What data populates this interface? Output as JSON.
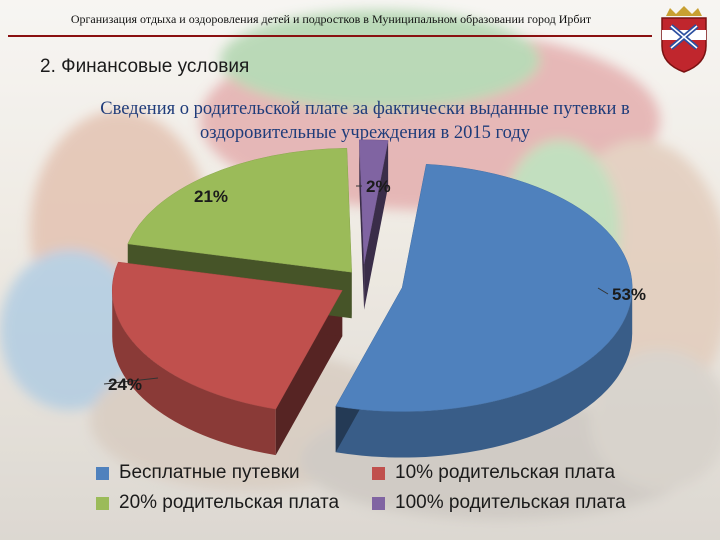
{
  "header": {
    "org_text": "Организация отдыха и оздоровления детей и подростков в Муниципальном образовании город Ирбит",
    "accent_color": "#8a1010"
  },
  "slide": {
    "section_title": "2. Финансовые условия"
  },
  "chart_data": {
    "type": "pie",
    "title_lines": [
      "Сведения о родительской плате за фактически выданные путевки в",
      "оздоровительные учреждения в 2015 году"
    ],
    "unit": "%",
    "data_labels": [
      "53%",
      "24%",
      "21%",
      "2%"
    ],
    "categories": [
      "Бесплатные путевки",
      "10% родительская плата",
      "20% родительская плата",
      "100% родительская плата"
    ],
    "values": [
      53,
      24,
      21,
      2
    ],
    "colors": [
      "#4f81bd",
      "#c0504d",
      "#9bbb59",
      "#8064a2"
    ],
    "exploded": true,
    "style": "3d",
    "legend_position": "bottom"
  }
}
